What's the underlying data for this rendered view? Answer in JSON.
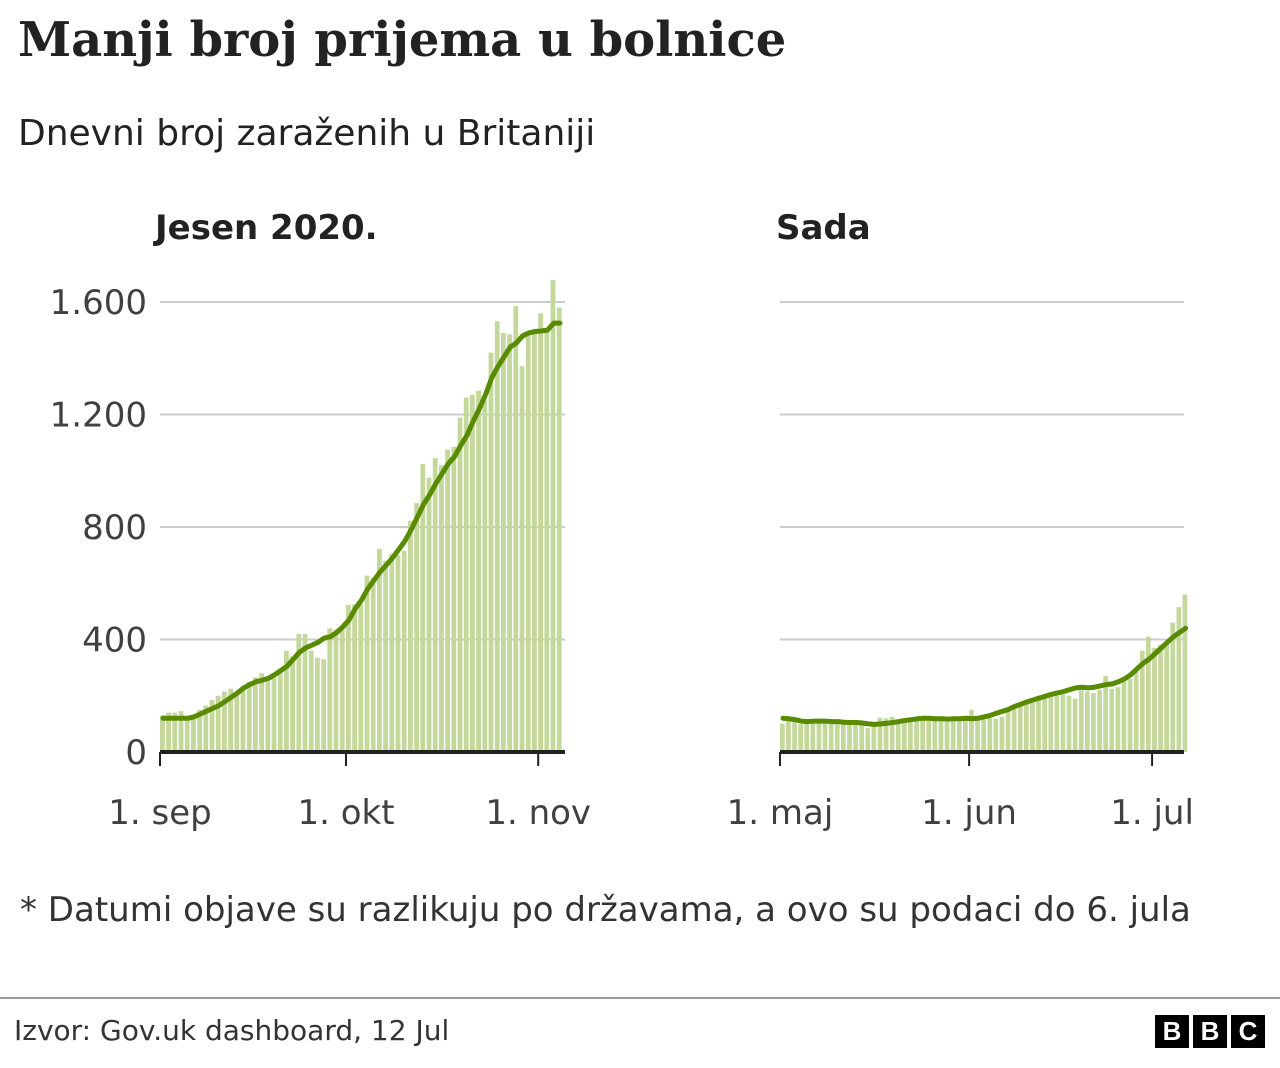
{
  "title": "Manji broj prijema u bolnice",
  "subtitle": "Dnevni broj zaraženih u Britaniji",
  "footnote": "* Datumi objave su razlikuju po državama, a ovo su podaci do 6. jula",
  "source": "Izvor: Gov.uk dashboard, 12 Jul",
  "logo": [
    "B",
    "B",
    "C"
  ],
  "colors": {
    "bars": "#c5d89c",
    "line": "#588b00",
    "grid": "#cccccc",
    "axis": "#222222"
  },
  "chart_data": [
    {
      "type": "bar",
      "title": "Jesen 2020.",
      "ylim": [
        0,
        1700
      ],
      "yticks": [
        0,
        400,
        800,
        1200,
        1600
      ],
      "ytick_labels": [
        "0",
        "400",
        "800",
        "1.200",
        "1.600"
      ],
      "xticks": [
        "09-01",
        "10-01",
        "11-01"
      ],
      "xtick_labels": [
        "1. sep",
        "1. okt",
        "1. nov"
      ],
      "grid": true,
      "x": [
        "09-01",
        "09-02",
        "09-03",
        "09-04",
        "09-05",
        "09-06",
        "09-07",
        "09-08",
        "09-09",
        "09-10",
        "09-11",
        "09-12",
        "09-13",
        "09-14",
        "09-15",
        "09-16",
        "09-17",
        "09-18",
        "09-19",
        "09-20",
        "09-21",
        "09-22",
        "09-23",
        "09-24",
        "09-25",
        "09-26",
        "09-27",
        "09-28",
        "09-29",
        "09-30",
        "10-01",
        "10-02",
        "10-03",
        "10-04",
        "10-05",
        "10-06",
        "10-07",
        "10-08",
        "10-09",
        "10-10",
        "10-11",
        "10-12",
        "10-13",
        "10-14",
        "10-15",
        "10-16",
        "10-17",
        "10-18",
        "10-19",
        "10-20",
        "10-21",
        "10-22",
        "10-23",
        "10-24",
        "10-25",
        "10-26",
        "10-27",
        "10-28",
        "10-29",
        "10-30",
        "10-31",
        "11-01",
        "11-02",
        "11-03",
        "11-04"
      ],
      "series": [
        {
          "kind": "bar",
          "values": [
            130,
            140,
            140,
            145,
            125,
            130,
            150,
            165,
            185,
            200,
            215,
            225,
            210,
            220,
            250,
            265,
            280,
            260,
            265,
            290,
            360,
            340,
            420,
            420,
            360,
            335,
            330,
            440,
            435,
            450,
            523,
            525,
            525,
            627,
            620,
            722,
            680,
            705,
            700,
            715,
            822,
            885,
            1024,
            975,
            1045,
            1020,
            1075,
            1085,
            1189,
            1260,
            1270,
            1285,
            1250,
            1420,
            1532,
            1490,
            1485,
            1585,
            1372,
            1490,
            1490,
            1560,
            1500,
            1678,
            1580
          ]
        },
        {
          "kind": "line",
          "values": [
            120,
            120,
            120,
            120,
            120,
            125,
            135,
            145,
            155,
            165,
            180,
            195,
            210,
            228,
            240,
            250,
            255,
            262,
            275,
            290,
            305,
            330,
            355,
            370,
            380,
            390,
            405,
            410,
            425,
            445,
            470,
            510,
            540,
            580,
            610,
            640,
            665,
            690,
            720,
            750,
            790,
            835,
            880,
            915,
            955,
            990,
            1025,
            1050,
            1090,
            1125,
            1175,
            1220,
            1270,
            1330,
            1370,
            1405,
            1440,
            1455,
            1480,
            1490,
            1495,
            1497,
            1500,
            1525,
            1525
          ]
        }
      ]
    },
    {
      "type": "bar",
      "title": "Sada",
      "ylim": [
        0,
        1700
      ],
      "yticks": [
        0,
        400,
        800,
        1200,
        1600
      ],
      "xticks": [
        "05-01",
        "06-01",
        "07-01"
      ],
      "xtick_labels": [
        "1. maj",
        "1. jun",
        "1. jul"
      ],
      "grid": true,
      "x": [
        "05-01",
        "05-02",
        "05-03",
        "05-04",
        "05-05",
        "05-06",
        "05-07",
        "05-08",
        "05-09",
        "05-10",
        "05-11",
        "05-12",
        "05-13",
        "05-14",
        "05-15",
        "05-16",
        "05-17",
        "05-18",
        "05-19",
        "05-20",
        "05-21",
        "05-22",
        "05-23",
        "05-24",
        "05-25",
        "05-26",
        "05-27",
        "05-28",
        "05-29",
        "05-30",
        "05-31",
        "06-01",
        "06-02",
        "06-03",
        "06-04",
        "06-05",
        "06-06",
        "06-07",
        "06-08",
        "06-09",
        "06-10",
        "06-11",
        "06-12",
        "06-13",
        "06-14",
        "06-15",
        "06-16",
        "06-17",
        "06-18",
        "06-19",
        "06-20",
        "06-21",
        "06-22",
        "06-23",
        "06-24",
        "06-25",
        "06-26",
        "06-27",
        "06-28",
        "06-29",
        "06-30",
        "07-01",
        "07-02",
        "07-03",
        "07-04",
        "07-05",
        "07-06"
      ],
      "series": [
        {
          "kind": "bar",
          "values": [
            100,
            115,
            110,
            100,
            105,
            110,
            108,
            110,
            105,
            100,
            110,
            105,
            100,
            95,
            85,
            105,
            122,
            120,
            125,
            110,
            115,
            112,
            120,
            125,
            118,
            120,
            110,
            108,
            118,
            120,
            115,
            150,
            118,
            115,
            120,
            118,
            125,
            145,
            160,
            170,
            180,
            175,
            190,
            195,
            200,
            200,
            205,
            200,
            190,
            220,
            215,
            210,
            220,
            270,
            225,
            230,
            250,
            260,
            300,
            360,
            410,
            370,
            380,
            385,
            460,
            515,
            560
          ]
        },
        {
          "kind": "line",
          "values": [
            120,
            118,
            115,
            110,
            108,
            110,
            110,
            110,
            108,
            108,
            106,
            105,
            105,
            103,
            100,
            98,
            100,
            102,
            105,
            108,
            112,
            115,
            118,
            120,
            120,
            118,
            118,
            117,
            118,
            118,
            120,
            118,
            120,
            125,
            130,
            138,
            145,
            152,
            162,
            170,
            178,
            185,
            192,
            198,
            205,
            210,
            215,
            222,
            228,
            230,
            228,
            230,
            235,
            240,
            242,
            250,
            260,
            275,
            295,
            315,
            330,
            350,
            370,
            390,
            410,
            425,
            440
          ]
        }
      ]
    }
  ]
}
